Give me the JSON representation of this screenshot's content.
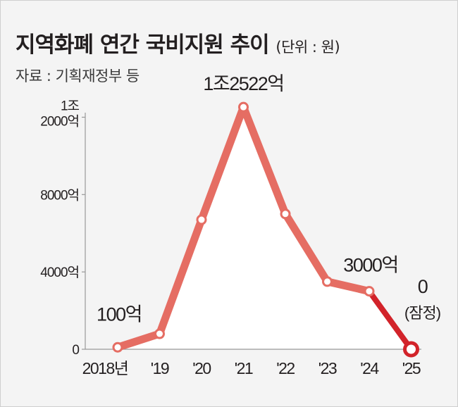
{
  "header": {
    "title": "지역화폐 연간 국비지원 추이",
    "unit": "(단위 : 원)",
    "source": "자료 : 기획재정부 등"
  },
  "chart_data": {
    "type": "line",
    "title": "지역화폐 연간 국비지원 추이",
    "unit": "(단위 : 원)",
    "source": "자료 : 기획재정부 등",
    "y_unit": "억 원",
    "x_labels": [
      "2018년",
      "'19",
      "'20",
      "'21",
      "'22",
      "'23",
      "'24",
      "'25"
    ],
    "x": [
      2018,
      2019,
      2020,
      2021,
      2022,
      2023,
      2024,
      2025
    ],
    "values": [
      100,
      800,
      6700,
      12522,
      7000,
      3500,
      3000,
      0
    ],
    "ylim": [
      0,
      12600
    ],
    "yticks": [
      {
        "value": 0,
        "label": "0"
      },
      {
        "value": 4000,
        "label": "4000억"
      },
      {
        "value": 8000,
        "label": "8000억"
      },
      {
        "value": 12000,
        "label": "1조\n2000억"
      }
    ],
    "annotations": [
      {
        "index": 0,
        "label": "100억"
      },
      {
        "index": 3,
        "label": "1조2522억"
      },
      {
        "index": 6,
        "label": "3000억"
      },
      {
        "index": 7,
        "label": "0",
        "note": "(잠정)"
      }
    ],
    "colors": {
      "line": "#e56d63",
      "provisional": "#d2232a",
      "fill": "#ffffff",
      "background": "#f4f4f4",
      "axis": "#999999"
    },
    "provisional_from_index": 6,
    "grid": false,
    "legend": "none"
  }
}
